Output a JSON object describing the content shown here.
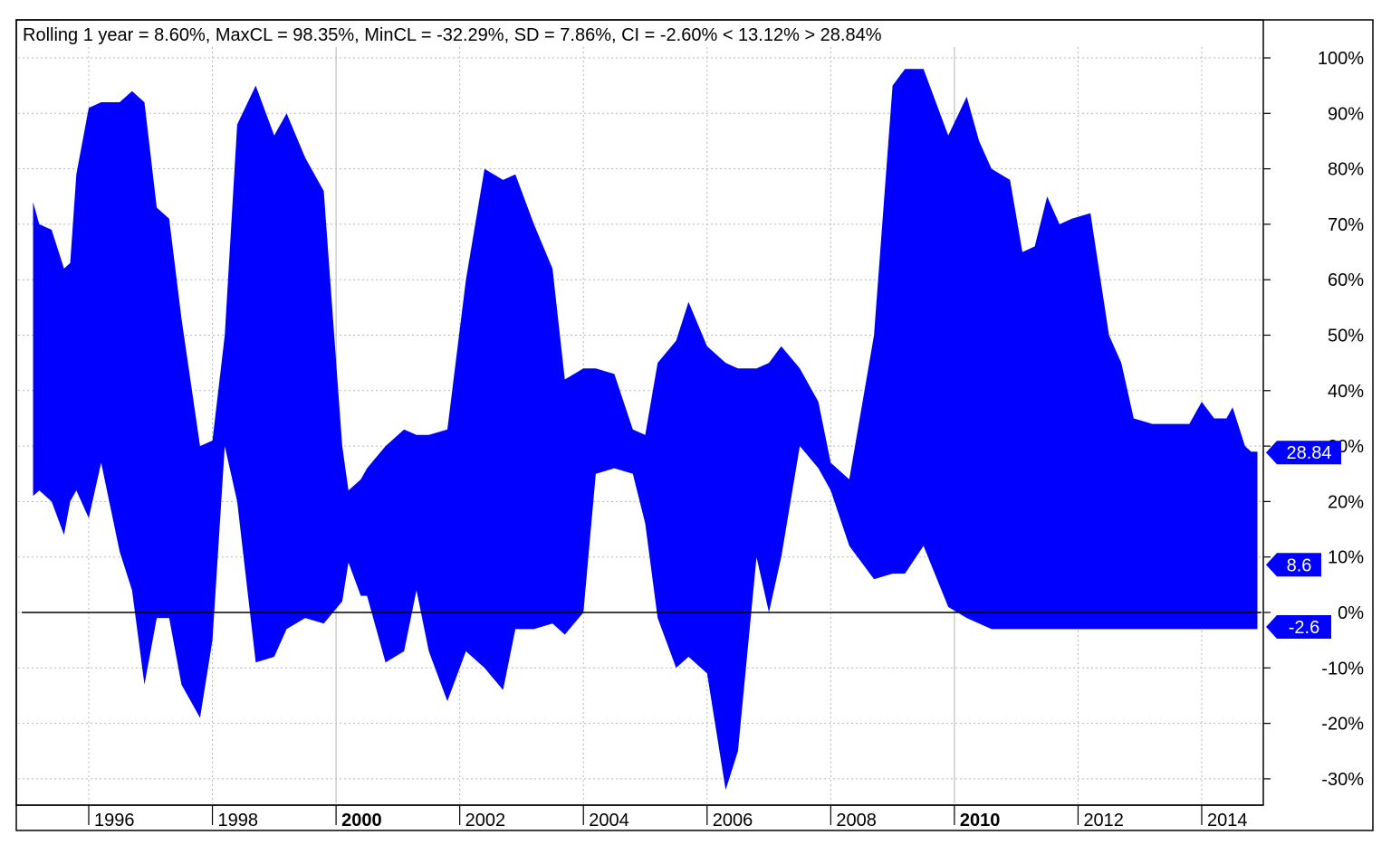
{
  "chart_data": {
    "type": "area",
    "title": "Rolling 1 year = 8.60%, MaxCL = 98.35%, MinCL = -32.29%, SD = 7.86%, CI = -2.60% < 13.12% > 28.84%",
    "xlabel": "",
    "ylabel": "",
    "xlim": [
      1994.2,
      2014.9
    ],
    "ylim": [
      -34,
      105
    ],
    "y_ticks": [
      -30,
      -20,
      -10,
      0,
      10,
      20,
      30,
      40,
      50,
      60,
      70,
      80,
      90,
      100
    ],
    "y_tick_labels": [
      "-30%",
      "-20%",
      "-10%",
      "0%",
      "10%",
      "20%",
      "30%",
      "40%",
      "50%",
      "60%",
      "70%",
      "80%",
      "90%",
      "100%"
    ],
    "x_ticks": [
      1996,
      1998,
      2000,
      2002,
      2004,
      2006,
      2008,
      2010,
      2012,
      2014
    ],
    "x_tick_labels": [
      "1996",
      "1998",
      "2000",
      "2002",
      "2004",
      "2006",
      "2008",
      "2010",
      "2012",
      "2014"
    ],
    "x_tick_bold": [
      "2000",
      "2010"
    ],
    "grid": true,
    "reference_line_y": 0,
    "band_color": "#0000ff",
    "series": [
      {
        "name": "upper",
        "x": [
          1995.1,
          1995.2,
          1995.4,
          1995.6,
          1995.7,
          1995.8,
          1996.0,
          1996.2,
          1996.5,
          1996.7,
          1996.9,
          1997.1,
          1997.3,
          1997.5,
          1997.8,
          1998.0,
          1998.2,
          1998.4,
          1998.7,
          1999.0,
          1999.2,
          1999.5,
          1999.8,
          2000.1,
          2000.2,
          2000.4,
          2000.5,
          2000.8,
          2001.1,
          2001.3,
          2001.5,
          2001.8,
          2002.1,
          2002.4,
          2002.7,
          2002.9,
          2003.2,
          2003.5,
          2003.7,
          2004.0,
          2004.2,
          2004.5,
          2004.8,
          2005.0,
          2005.2,
          2005.5,
          2005.7,
          2006.0,
          2006.3,
          2006.5,
          2006.8,
          2007.0,
          2007.2,
          2007.5,
          2007.8,
          2008.0,
          2008.3,
          2008.7,
          2009.0,
          2009.2,
          2009.5,
          2009.9,
          2010.2,
          2010.4,
          2010.6,
          2010.9,
          2011.1,
          2011.3,
          2011.5,
          2011.7,
          2011.9,
          2012.2,
          2012.5,
          2012.7,
          2012.9,
          2013.2,
          2013.5,
          2013.8,
          2014.0,
          2014.2,
          2014.4,
          2014.5,
          2014.7,
          2014.8,
          2014.9
        ],
        "values": [
          74,
          70,
          69,
          62,
          63,
          79,
          91,
          92,
          92,
          94,
          92,
          73,
          71,
          53,
          30,
          31,
          50,
          88,
          95,
          86,
          90,
          82,
          76,
          30,
          22,
          24,
          26,
          30,
          33,
          32,
          32,
          33,
          60,
          80,
          78,
          79,
          70,
          62,
          42,
          44,
          44,
          43,
          33,
          32,
          45,
          49,
          56,
          48,
          45,
          44,
          44,
          45,
          48,
          44,
          38,
          27,
          24,
          50,
          95,
          98,
          98,
          86,
          93,
          85,
          80,
          78,
          65,
          66,
          75,
          70,
          71,
          72,
          50,
          45,
          35,
          34,
          34,
          34,
          38,
          35,
          35,
          37,
          30,
          29,
          29
        ]
      },
      {
        "name": "lower",
        "x": [
          1995.1,
          1995.2,
          1995.4,
          1995.6,
          1995.7,
          1995.8,
          1996.0,
          1996.2,
          1996.5,
          1996.7,
          1996.9,
          1997.1,
          1997.3,
          1997.5,
          1997.8,
          1998.0,
          1998.2,
          1998.4,
          1998.7,
          1999.0,
          1999.2,
          1999.5,
          1999.8,
          2000.1,
          2000.2,
          2000.4,
          2000.5,
          2000.8,
          2001.1,
          2001.3,
          2001.5,
          2001.8,
          2002.1,
          2002.4,
          2002.7,
          2002.9,
          2003.2,
          2003.5,
          2003.7,
          2004.0,
          2004.2,
          2004.5,
          2004.8,
          2005.0,
          2005.2,
          2005.5,
          2005.7,
          2006.0,
          2006.3,
          2006.5,
          2006.8,
          2007.0,
          2007.2,
          2007.5,
          2007.8,
          2008.0,
          2008.3,
          2008.7,
          2009.0,
          2009.2,
          2009.5,
          2009.9,
          2010.2,
          2010.4,
          2010.6,
          2010.9,
          2011.1,
          2011.3,
          2011.5,
          2011.7,
          2011.9,
          2012.2,
          2012.5,
          2012.7,
          2012.9,
          2013.2,
          2013.5,
          2013.8,
          2014.0,
          2014.2,
          2014.4,
          2014.5,
          2014.7,
          2014.8,
          2014.9
        ],
        "values": [
          21,
          22,
          20,
          14,
          20,
          22,
          17,
          27,
          11,
          4,
          -13,
          -1,
          -1,
          -13,
          -19,
          -5,
          30,
          20,
          -9,
          -8,
          -3,
          -1,
          -2,
          2,
          9,
          3,
          3,
          -9,
          -7,
          4,
          -7,
          -16,
          -7,
          -10,
          -14,
          -3,
          -3,
          -2,
          -4,
          0,
          25,
          26,
          25,
          16,
          -1,
          -10,
          -8,
          -11,
          -32,
          -25,
          10,
          0,
          10,
          30,
          26,
          22,
          12,
          6,
          7,
          7,
          12,
          1,
          -1,
          -2,
          -3,
          -3,
          -3,
          -3,
          -3,
          -3,
          -3,
          -3,
          -3,
          -3,
          -3,
          -3,
          -3,
          -3,
          -3,
          -3,
          -3,
          -3,
          -3,
          -3,
          -3
        ]
      }
    ],
    "markers": [
      {
        "label": "28.84",
        "value": 28.84
      },
      {
        "label": "8.6",
        "value": 8.6
      },
      {
        "label": "-2.6",
        "value": -2.6
      }
    ]
  }
}
